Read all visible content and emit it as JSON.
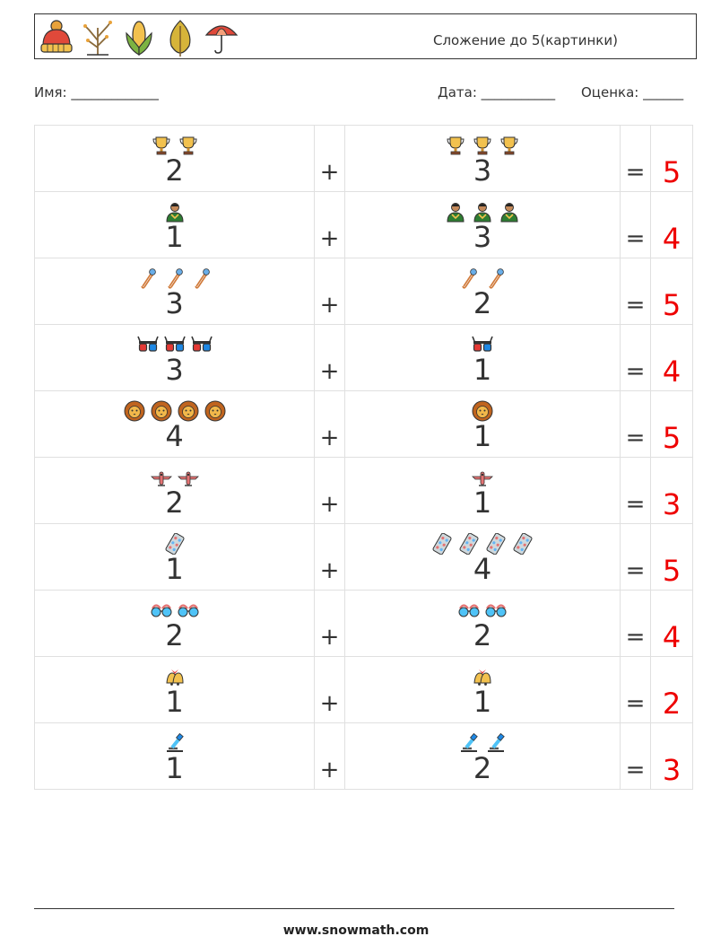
{
  "header": {
    "title": "Сложение до 5(картинки)",
    "icons": [
      "winter-hat-icon",
      "bare-tree-icon",
      "corn-icon",
      "autumn-leaf-icon",
      "umbrella-icon"
    ]
  },
  "meta": {
    "name_label": "Имя: _____________",
    "date_label": "Дата: ___________",
    "grade_label": "Оценка: ______"
  },
  "operators": {
    "plus": "+",
    "equals": "="
  },
  "rows": [
    {
      "icon": "trophy-icon",
      "a": "2",
      "b": "3",
      "answer": "5"
    },
    {
      "icon": "person-icon",
      "a": "1",
      "b": "3",
      "answer": "4"
    },
    {
      "icon": "safety-pin-icon",
      "a": "3",
      "b": "2",
      "answer": "5"
    },
    {
      "icon": "3d-glasses-icon",
      "a": "3",
      "b": "1",
      "answer": "4"
    },
    {
      "icon": "lion-icon",
      "a": "4",
      "b": "1",
      "answer": "5"
    },
    {
      "icon": "airplane-icon",
      "a": "2",
      "b": "1",
      "answer": "3"
    },
    {
      "icon": "pill-pack-icon",
      "a": "1",
      "b": "4",
      "answer": "5"
    },
    {
      "icon": "sunglasses-icon",
      "a": "2",
      "b": "2",
      "answer": "4"
    },
    {
      "icon": "bells-icon",
      "a": "1",
      "b": "1",
      "answer": "2"
    },
    {
      "icon": "microscope-icon",
      "a": "1",
      "b": "2",
      "answer": "3"
    }
  ],
  "footer": {
    "website": "www.snowmath.com"
  }
}
